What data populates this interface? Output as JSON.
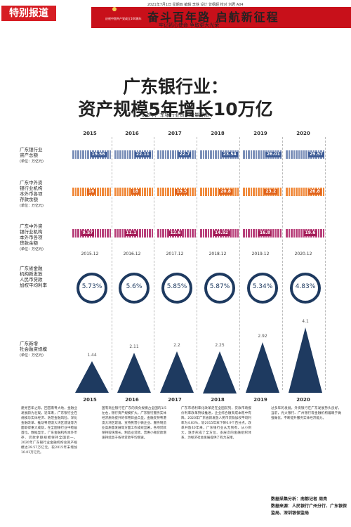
{
  "header": {
    "tag": "特别报道",
    "date_edition": "2021年7月1日 星期四 编辑 李铁 设计 曾纲超 校对 刘君 A04",
    "page_code": "A04"
  },
  "banner": {
    "main": "奋斗百年路 启航新征程",
    "sub": "牢记初心使命  争取更大光荣",
    "small": "庆祝中国共产党成立100周年"
  },
  "headline": {
    "line1": "广东银行业：",
    "line2": "资产规模5年增长10万亿"
  },
  "chart": {
    "title": "近5年广东银行业资产增量提质"
  },
  "chart_data": {
    "type": "table",
    "years": [
      "2015",
      "2016",
      "2017",
      "2018",
      "2019",
      "2020"
    ],
    "assets": {
      "label": "广东银行业\n资产总额",
      "unit": "(单位：万亿元)",
      "values": [
        "19.56",
        "22.11",
        "22.7",
        "23.54",
        "26.01",
        "29.57"
      ]
    },
    "deposits": {
      "label": "广东中外资\n银行业机构\n本外币各项\n存款余额",
      "unit": "(单位：万亿元)",
      "values": [
        "16",
        "18",
        "19.5",
        "20.8",
        "23.2",
        "26.8"
      ]
    },
    "loans": {
      "label": "广东中外资\n银行业机构\n本外币各项\n贷款余额",
      "unit": "(单位：万亿元)",
      "values": [
        "9.57",
        "11.1",
        "12.6",
        "14.52",
        "16.8",
        "19.6"
      ]
    },
    "rates": {
      "label": "广东省金融\n机构新发放\n人民币贷款\n加权平均利率",
      "dates": [
        "2015.12",
        "2016.12",
        "2017.12",
        "2018.12",
        "2019.12",
        "2020.12"
      ],
      "values": [
        "5.73%",
        "5.6%",
        "5.85%",
        "5.87%",
        "5.34%",
        "4.83%"
      ]
    },
    "financing": {
      "label": "广东新增\n社会融资规模",
      "unit": "(单位：万亿元)",
      "values": [
        "1.44",
        "2.11",
        "2.2",
        "2.25",
        "2.92",
        "4.1"
      ]
    }
  },
  "footer_years": [
    "2015",
    "2016",
    "2017",
    "2018",
    "2019",
    "2020"
  ],
  "body": {
    "col1": "建党百年之际，回首南粤大地，金融业发展蔚为壮观。近年来，广东银行业在规模与实体经济、防范金融风险、深化金融改革、推动粤港澳大湾区建设等方面取得重大成就，在全国银行业中稳居首位。数据显示，广东金融机构本外币存、贷款余额规模保持全国第一。2020年广东银行业金融机构总资产规模达29.57万亿元，较2015年末增加10.01万亿元。",
    "col2": "国有商业银行在广东的资负规模占全国的1/5左右，银行资产规模扩大。广东银行服务实体经济质效提升的作用日益凸显，金融支持粤港澳大湾区建设、支持民营小微企业、服务制造业高质量发展等方面工作成效显著，各项贷款保持较快增长，制造业贷款、普惠小微贷款增速持续高于各项贷款平均增速。",
    "col3": "广东市场利率化改革走在全国前列，贷款市场报价利率改革持续推进，企业综合融资成本稳中有降。2020年广东省新发放人民币贷款加权平均利率为4.83%，较2015年末下降0.9个百分点。改革开放40年来，广东银行业从无到有、从小到大，逐步形成了全方位、多层次的金融组织体系，为经济社会发展提供了有力支撑。",
    "col4": "过多年的发展，外资银行在广东发展势头良好。当前，光大银行、广州银行等金融机构着眼于做强做优，不断提升服务实体经济能力。",
    "credit1": "数据采集分析：南都记者 周亮",
    "credit2": "数据来源：人民银行广州分行、广东银保监局、深圳银保监局"
  }
}
